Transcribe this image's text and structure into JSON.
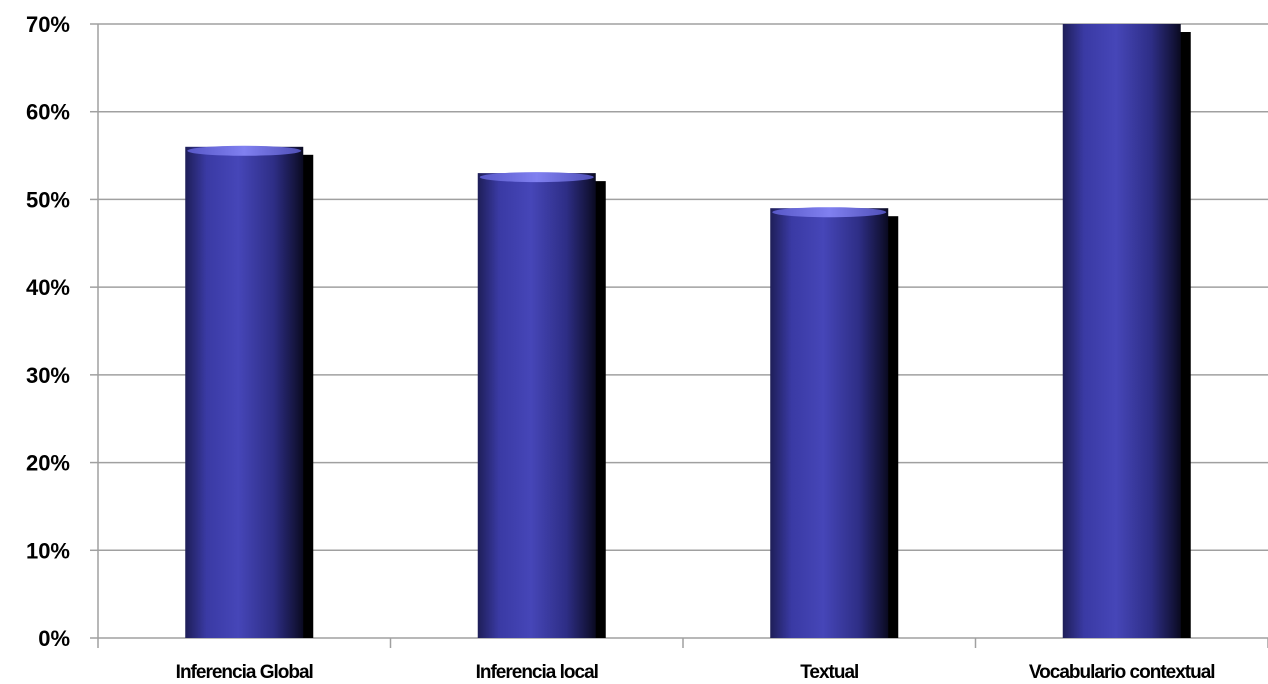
{
  "chart_data": {
    "type": "bar",
    "title": "",
    "xlabel": "",
    "ylabel": "",
    "categories": [
      "Inferencia Global",
      "Inferencia local",
      "Textual",
      "Vocabulario contextual"
    ],
    "values": [
      0.56,
      0.53,
      0.49,
      0.7
    ],
    "ylim": [
      0,
      0.7
    ],
    "yticks": [
      0,
      0.1,
      0.2,
      0.3,
      0.4,
      0.5,
      0.6,
      0.7
    ],
    "ytick_labels": [
      "0%",
      "10%",
      "20%",
      "30%",
      "40%",
      "50%",
      "60%",
      "70%"
    ],
    "grid": true,
    "legend": "none",
    "colors": {
      "bar_mid": "#3a3a9e",
      "bar_light": "#4a4ac0",
      "bar_dark": "#15153f",
      "bar_top": "#7a7ae8",
      "gridline": "#a0a0a0",
      "axis": "#a0a0a0"
    }
  }
}
